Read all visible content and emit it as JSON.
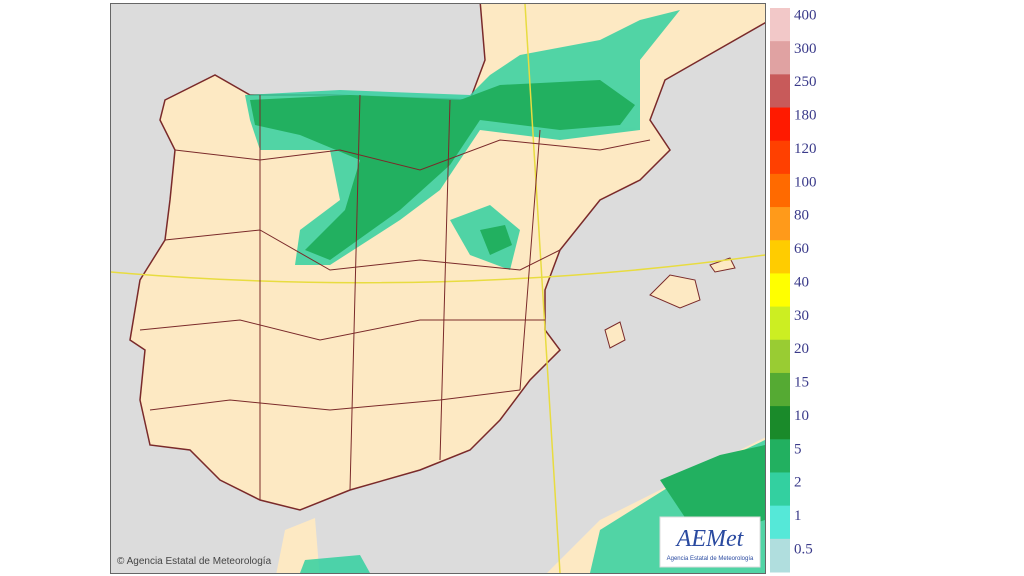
{
  "legend": {
    "items": [
      {
        "label": "400",
        "color": "#f2c8c8"
      },
      {
        "label": "300",
        "color": "#e0a2a2"
      },
      {
        "label": "250",
        "color": "#c85a5a"
      },
      {
        "label": "180",
        "color": "#ff1a00"
      },
      {
        "label": "120",
        "color": "#ff4000"
      },
      {
        "label": "100",
        "color": "#ff6a00"
      },
      {
        "label": "80",
        "color": "#ff9a1a"
      },
      {
        "label": "60",
        "color": "#ffcc00"
      },
      {
        "label": "40",
        "color": "#ffff00"
      },
      {
        "label": "30",
        "color": "#ccee22"
      },
      {
        "label": "20",
        "color": "#99cc33"
      },
      {
        "label": "15",
        "color": "#55aa33"
      },
      {
        "label": "10",
        "color": "#1a8a2a"
      },
      {
        "label": "5",
        "color": "#22b060"
      },
      {
        "label": "2",
        "color": "#33d0a0"
      },
      {
        "label": "1",
        "color": "#55e8d8"
      },
      {
        "label": "0.5",
        "color": "#b0dede"
      }
    ]
  },
  "copyright": "© Agencia Estatal de Meteorología",
  "logo": {
    "name": "AEMet",
    "subtitle": "Agencia Estatal de Meteorología"
  }
}
